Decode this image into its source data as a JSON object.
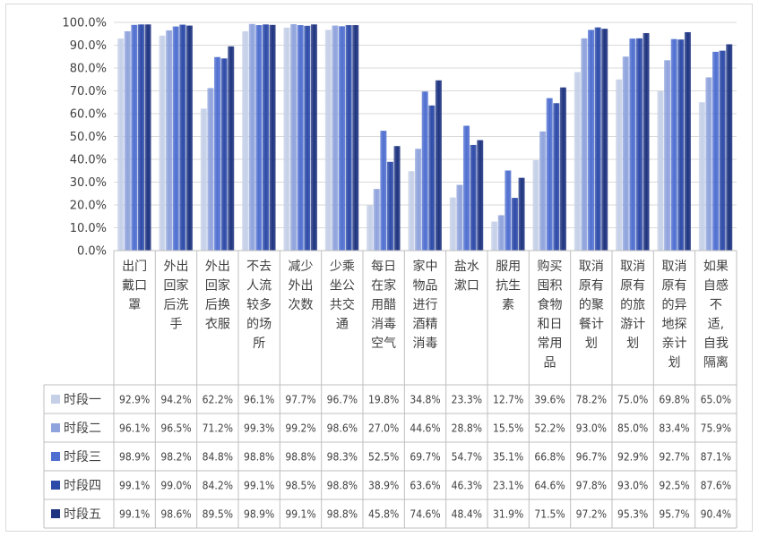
{
  "chart_data": {
    "type": "bar",
    "ylim": [
      0,
      100
    ],
    "y_ticks": [
      "0.0%",
      "10.0%",
      "20.0%",
      "30.0%",
      "40.0%",
      "50.0%",
      "60.0%",
      "70.0%",
      "80.0%",
      "90.0%",
      "100.0%"
    ],
    "categories": [
      [
        "出门",
        "戴口",
        "罩"
      ],
      [
        "外出",
        "回家",
        "后洗",
        "手"
      ],
      [
        "外出",
        "回家",
        "后换",
        "衣服"
      ],
      [
        "不去",
        "人流",
        "较多",
        "的场",
        "所"
      ],
      [
        "减少",
        "外出",
        "次数"
      ],
      [
        "少乘",
        "坐公",
        "共交",
        "通"
      ],
      [
        "每日",
        "在家",
        "用醋",
        "消毒",
        "空气"
      ],
      [
        "家中",
        "物品",
        "进行",
        "酒精",
        "消毒"
      ],
      [
        "盐水",
        "漱口"
      ],
      [
        "服用",
        "抗生",
        "素"
      ],
      [
        "购买",
        "囤积",
        "食物",
        "和日",
        "常用",
        "品"
      ],
      [
        "取消",
        "原有",
        "的聚",
        "餐计",
        "划"
      ],
      [
        "取消",
        "原有",
        "的旅",
        "游计",
        "划"
      ],
      [
        "取消",
        "原有",
        "的异",
        "地探",
        "亲计",
        "划"
      ],
      [
        "如果",
        "自感",
        "不",
        "适,",
        "自我",
        "隔离"
      ]
    ],
    "series": [
      {
        "name": "时段一",
        "color": "#c5d0e8",
        "values": [
          92.9,
          94.2,
          62.2,
          96.1,
          97.7,
          96.7,
          19.8,
          34.8,
          23.3,
          12.7,
          39.6,
          78.2,
          75.0,
          69.8,
          65.0
        ],
        "labels": [
          "92.9%",
          "94.2%",
          "62.2%",
          "96.1%",
          "97.7%",
          "96.7%",
          "19.8%",
          "34.8%",
          "23.3%",
          "12.7%",
          "39.6%",
          "78.2%",
          "75.0%",
          "69.8%",
          "65.0%"
        ]
      },
      {
        "name": "时段二",
        "color": "#8fa3dc",
        "values": [
          96.1,
          96.5,
          71.2,
          99.3,
          99.2,
          98.6,
          27.0,
          44.6,
          28.8,
          15.5,
          52.2,
          93.0,
          85.0,
          83.4,
          75.9
        ],
        "labels": [
          "96.1%",
          "96.5%",
          "71.2%",
          "99.3%",
          "99.2%",
          "98.6%",
          "27.0%",
          "44.6%",
          "28.8%",
          "15.5%",
          "52.2%",
          "93.0%",
          "85.0%",
          "83.4%",
          "75.9%"
        ]
      },
      {
        "name": "时段三",
        "color": "#4f6fd0",
        "values": [
          98.9,
          98.2,
          84.8,
          98.8,
          98.8,
          98.3,
          52.5,
          69.7,
          54.7,
          35.1,
          66.8,
          96.7,
          92.9,
          92.7,
          87.1
        ],
        "labels": [
          "98.9%",
          "98.2%",
          "84.8%",
          "98.8%",
          "98.8%",
          "98.3%",
          "52.5%",
          "69.7%",
          "54.7%",
          "35.1%",
          "66.8%",
          "96.7%",
          "92.9%",
          "92.7%",
          "87.1%"
        ]
      },
      {
        "name": "时段四",
        "color": "#2c4aa8",
        "values": [
          99.1,
          99.0,
          84.2,
          99.1,
          98.5,
          98.8,
          38.9,
          63.6,
          46.3,
          23.1,
          64.6,
          97.8,
          93.0,
          92.5,
          87.6
        ],
        "labels": [
          "99.1%",
          "99.0%",
          "84.2%",
          "99.1%",
          "98.5%",
          "98.8%",
          "38.9%",
          "63.6%",
          "46.3%",
          "23.1%",
          "64.6%",
          "97.8%",
          "93.0%",
          "92.5%",
          "87.6%"
        ]
      },
      {
        "name": "时段五",
        "color": "#1e3380",
        "values": [
          99.1,
          98.6,
          89.5,
          98.9,
          99.1,
          98.8,
          45.8,
          74.6,
          48.4,
          31.9,
          71.5,
          97.2,
          95.3,
          95.7,
          90.4
        ],
        "labels": [
          "99.1%",
          "98.6%",
          "89.5%",
          "98.9%",
          "99.1%",
          "98.8%",
          "45.8%",
          "74.6%",
          "48.4%",
          "31.9%",
          "71.5%",
          "97.2%",
          "95.3%",
          "95.7%",
          "90.4%"
        ]
      }
    ],
    "grid": true,
    "legend": "data-table"
  }
}
